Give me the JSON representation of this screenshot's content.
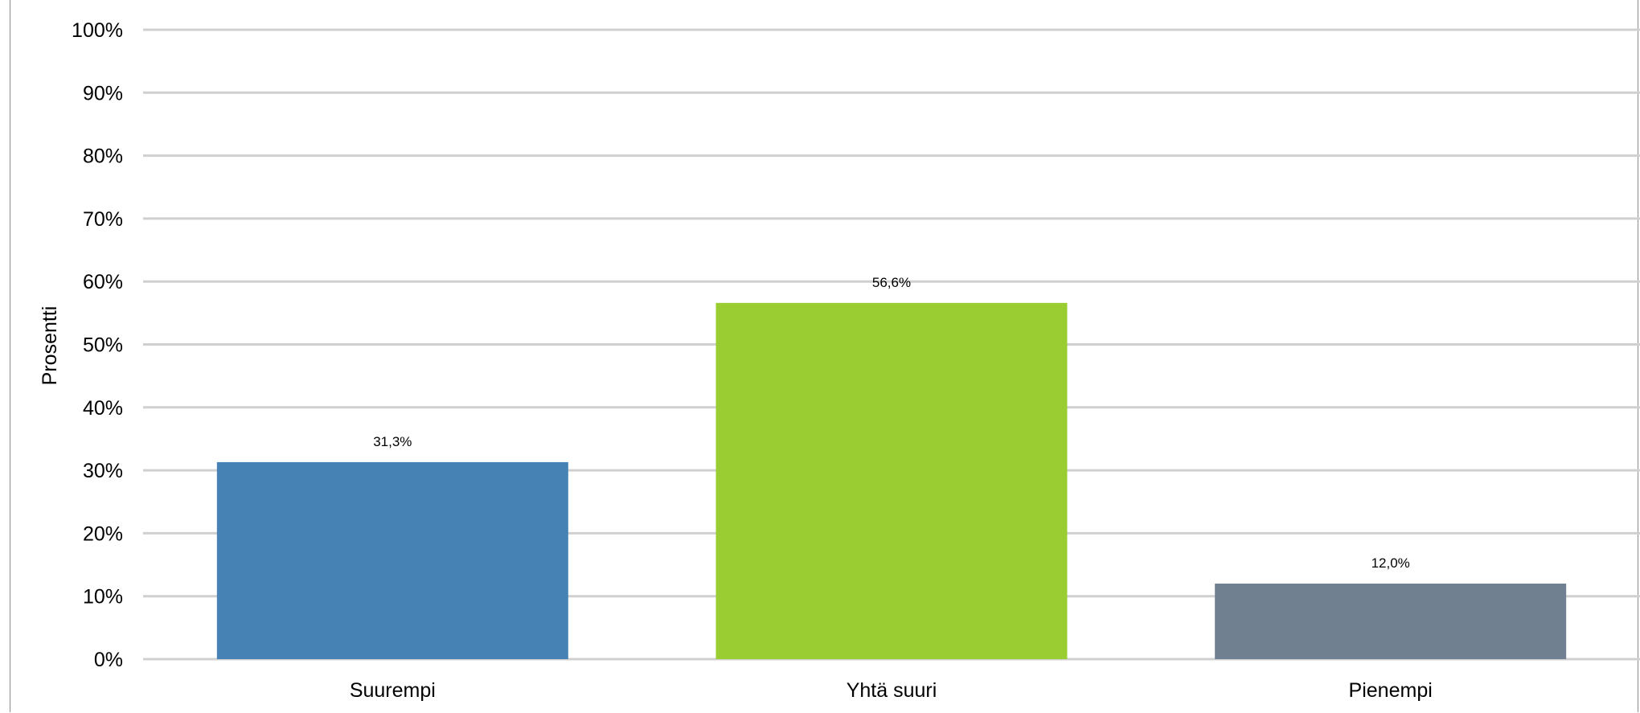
{
  "chart_data": {
    "type": "bar",
    "title": "",
    "xlabel": "",
    "ylabel": "Prosentti",
    "ylim": [
      0,
      100
    ],
    "y_tick_values": [
      0,
      10,
      20,
      30,
      40,
      50,
      60,
      70,
      80,
      90,
      100
    ],
    "y_tick_labels": [
      "0%",
      "10%",
      "20%",
      "30%",
      "40%",
      "50%",
      "60%",
      "70%",
      "80%",
      "90%",
      "100%"
    ],
    "categories": [
      "Suurempi",
      "Yhtä suuri",
      "Pienempi"
    ],
    "values": [
      31.3,
      56.6,
      12.0
    ],
    "data_labels": [
      "31,3%",
      "56,6%",
      "12,0%"
    ],
    "colors": [
      "#4682b4",
      "#9acd32",
      "#708090"
    ],
    "grid": true,
    "legend": "none"
  }
}
